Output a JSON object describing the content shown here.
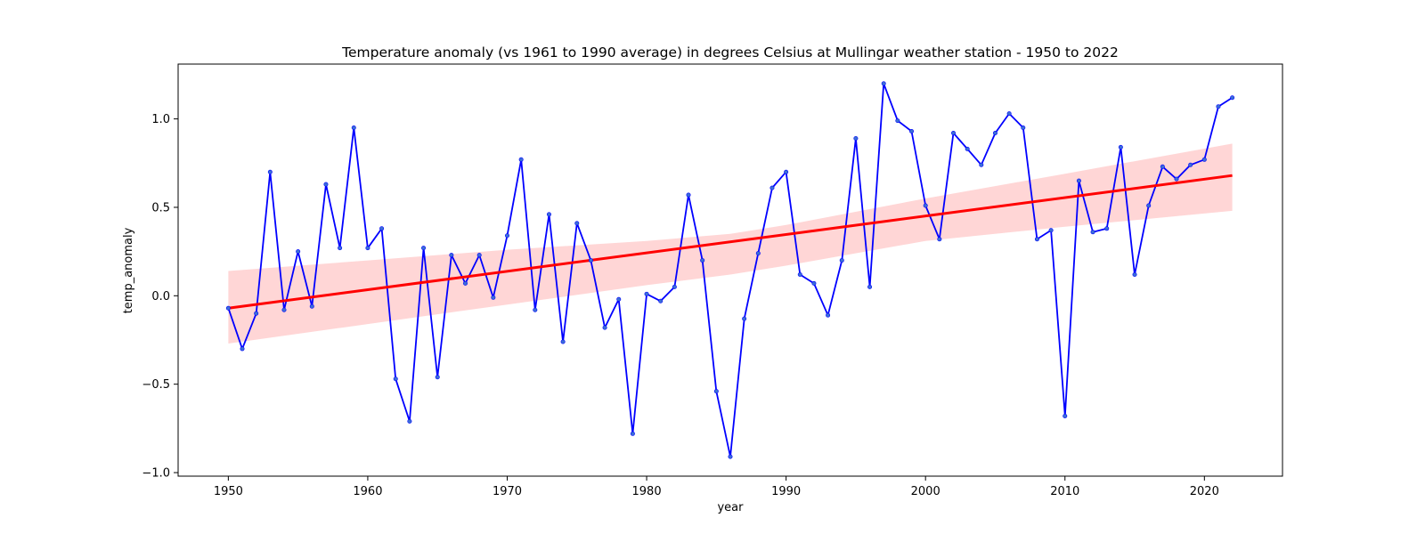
{
  "chart_data": {
    "type": "line",
    "title": "Temperature anomaly (vs 1961 to 1990 average) in degrees Celsius at Mullingar weather station - 1950 to 2022",
    "xlabel": "year",
    "ylabel": "temp_anomaly",
    "xlim": [
      1946.4,
      2025.6
    ],
    "ylim": [
      -1.02,
      1.31
    ],
    "x_ticks": [
      1950,
      1960,
      1970,
      1980,
      1990,
      2000,
      2010,
      2020
    ],
    "y_ticks": [
      -1.0,
      -0.5,
      0.0,
      0.5,
      1.0
    ],
    "y_tick_labels": [
      "−1.0",
      "−0.5",
      "0.0",
      "0.5",
      "1.0"
    ],
    "grid": false,
    "series": [
      {
        "role": "observed",
        "color": "#0000ff",
        "marker": "dot",
        "x": [
          1950,
          1951,
          1952,
          1953,
          1954,
          1955,
          1956,
          1957,
          1958,
          1959,
          1960,
          1961,
          1962,
          1963,
          1964,
          1965,
          1966,
          1967,
          1968,
          1969,
          1970,
          1971,
          1972,
          1973,
          1974,
          1975,
          1976,
          1977,
          1978,
          1979,
          1980,
          1981,
          1982,
          1983,
          1984,
          1985,
          1986,
          1987,
          1988,
          1989,
          1990,
          1991,
          1992,
          1993,
          1994,
          1995,
          1996,
          1997,
          1998,
          1999,
          2000,
          2001,
          2002,
          2003,
          2004,
          2005,
          2006,
          2007,
          2008,
          2009,
          2010,
          2011,
          2012,
          2013,
          2014,
          2015,
          2016,
          2017,
          2018,
          2019,
          2020,
          2021,
          2022
        ],
        "y": [
          -0.07,
          -0.3,
          -0.1,
          0.7,
          -0.08,
          0.25,
          -0.06,
          0.63,
          0.27,
          0.95,
          0.27,
          0.38,
          -0.47,
          -0.71,
          0.27,
          -0.46,
          0.23,
          0.07,
          0.23,
          -0.01,
          0.34,
          0.77,
          -0.08,
          0.46,
          -0.26,
          0.41,
          0.2,
          -0.18,
          -0.02,
          -0.78,
          0.01,
          -0.03,
          0.05,
          0.57,
          0.2,
          -0.54,
          -0.91,
          -0.13,
          0.24,
          0.61,
          0.7,
          0.12,
          0.07,
          -0.11,
          0.2,
          0.89,
          0.05,
          1.2,
          0.99,
          0.93,
          0.51,
          0.32,
          0.92,
          0.83,
          0.74,
          0.92,
          1.03,
          0.95,
          0.32,
          0.37,
          -0.68,
          0.65,
          0.36,
          0.38,
          0.84,
          0.12,
          0.51,
          0.73,
          0.66,
          0.74,
          0.77,
          1.07,
          1.12
        ]
      },
      {
        "role": "regression",
        "color": "#ff0000",
        "x": [
          1950,
          2022
        ],
        "y": [
          -0.07,
          0.68
        ]
      }
    ],
    "confidence_band": {
      "color": "#ffd6d6",
      "x": [
        1950,
        1960,
        1970,
        1980,
        1986,
        1990,
        2000,
        2010,
        2022
      ],
      "lower": [
        -0.27,
        -0.16,
        -0.05,
        0.06,
        0.12,
        0.17,
        0.31,
        0.39,
        0.48
      ],
      "upper": [
        0.14,
        0.2,
        0.26,
        0.31,
        0.35,
        0.4,
        0.55,
        0.69,
        0.86
      ]
    }
  }
}
